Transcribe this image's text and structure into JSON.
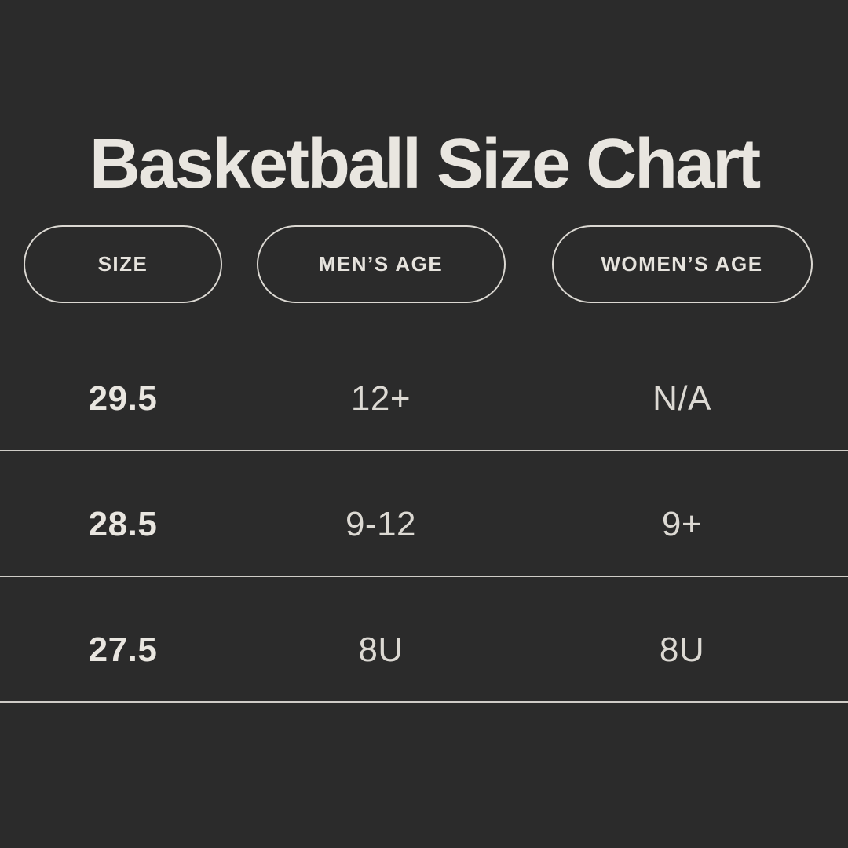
{
  "title": "Basketball Size Chart",
  "colors": {
    "background": "#2b2b2b",
    "title_text": "#e9e6e0",
    "cell_text": "#dcd9d3",
    "pill_border": "#dbd8d2",
    "divider": "#cfccc7"
  },
  "table": {
    "columns": [
      {
        "label": "SIZE"
      },
      {
        "label": "MEN’S AGE"
      },
      {
        "label": "WOMEN’S AGE"
      }
    ],
    "rows": [
      {
        "size": "29.5",
        "mens_age": "12+",
        "womens_age": "N/A"
      },
      {
        "size": "28.5",
        "mens_age": "9-12",
        "womens_age": "9+"
      },
      {
        "size": "27.5",
        "mens_age": "8U",
        "womens_age": "8U"
      }
    ]
  },
  "chart_data": {
    "type": "table",
    "title": "Basketball Size Chart",
    "columns": [
      "Size",
      "Men's Age",
      "Women's Age"
    ],
    "rows": [
      [
        "29.5",
        "12+",
        "N/A"
      ],
      [
        "28.5",
        "9-12",
        "9+"
      ],
      [
        "27.5",
        "8U",
        "8U"
      ]
    ],
    "layout_hints": {
      "theme": "dark",
      "header_style": "outlined-pill",
      "row_dividers": "full-width"
    }
  }
}
